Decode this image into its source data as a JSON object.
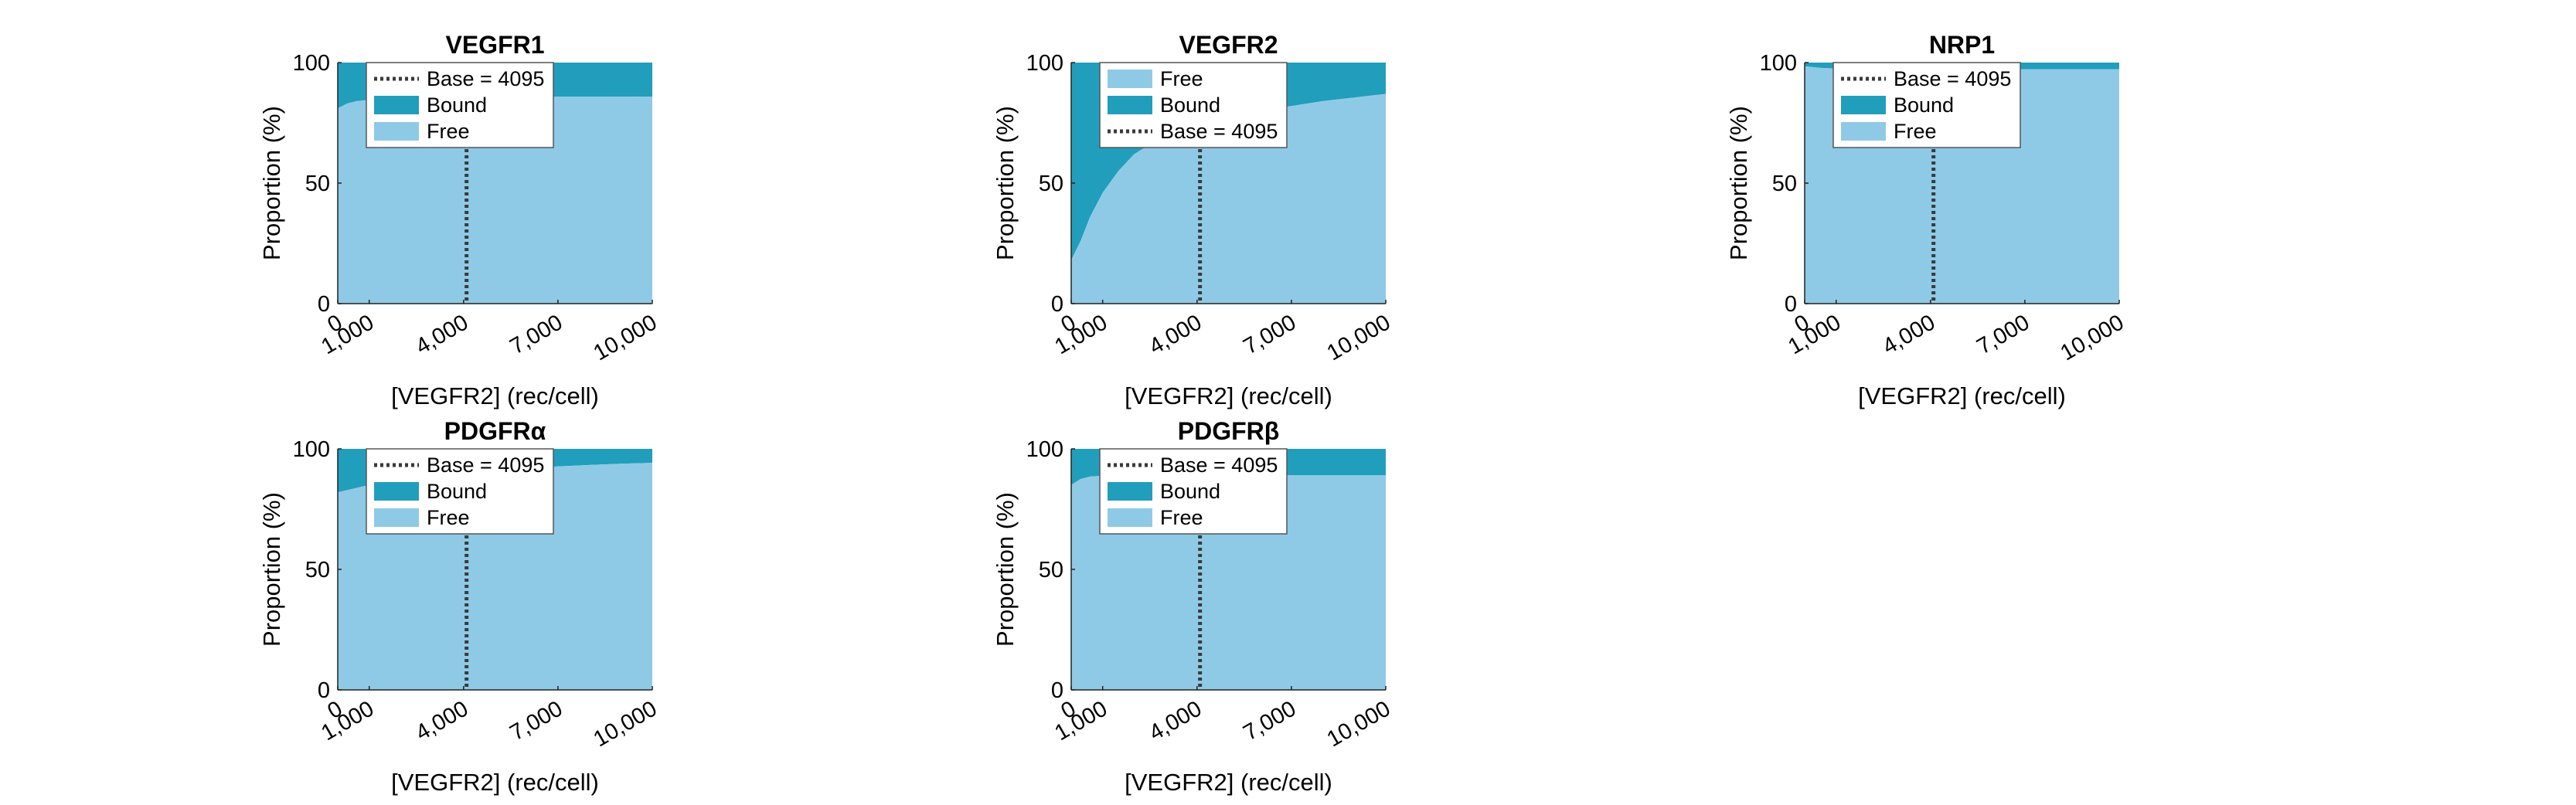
{
  "colors": {
    "free": "#8ecae6",
    "bound": "#219ebc",
    "base_line": "#3a3a3a",
    "axis": "#222222"
  },
  "chart_data": [
    {
      "type": "area",
      "title": "VEGFR1",
      "xlabel": "[VEGFR2] (rec/cell)",
      "ylabel": "Proportion (%)",
      "xlim": [
        0,
        10000
      ],
      "ylim": [
        0,
        100
      ],
      "x_ticks": [
        "0",
        "1,000",
        "4,000",
        "7,000",
        "10,000"
      ],
      "y_ticks": [
        "0",
        "50",
        "100"
      ],
      "base_value": 4095,
      "legend_order": [
        "Base = 4095",
        "Bound",
        "Free"
      ],
      "x": [
        0,
        300,
        600,
        1000,
        1500,
        2000,
        3000,
        4000,
        5000,
        6000,
        7000,
        8000,
        9000,
        10000
      ],
      "series": [
        {
          "name": "Free",
          "values": [
            81,
            83,
            84,
            84.5,
            85,
            85,
            85.3,
            85.5,
            85.6,
            85.7,
            85.8,
            85.8,
            85.8,
            85.9
          ]
        },
        {
          "name": "Bound",
          "values": [
            19,
            17,
            16,
            15.5,
            15,
            15,
            14.7,
            14.5,
            14.4,
            14.3,
            14.2,
            14.2,
            14.2,
            14.1
          ]
        }
      ]
    },
    {
      "type": "area",
      "title": "VEGFR2",
      "xlabel": "[VEGFR2] (rec/cell)",
      "ylabel": "Proportion (%)",
      "xlim": [
        0,
        10000
      ],
      "ylim": [
        0,
        100
      ],
      "x_ticks": [
        "0",
        "1,000",
        "4,000",
        "7,000",
        "10,000"
      ],
      "y_ticks": [
        "0",
        "50",
        "100"
      ],
      "base_value": 4095,
      "legend_order": [
        "Free",
        "Bound",
        "Base = 4095"
      ],
      "x": [
        0,
        300,
        600,
        1000,
        1500,
        2000,
        3000,
        4000,
        5000,
        6000,
        7000,
        8000,
        9000,
        10000
      ],
      "series": [
        {
          "name": "Free",
          "values": [
            18,
            26,
            36,
            46,
            55,
            62,
            70,
            74.5,
            77.5,
            80,
            82,
            84,
            85.5,
            87
          ]
        },
        {
          "name": "Bound",
          "values": [
            82,
            74,
            64,
            54,
            45,
            38,
            30,
            25.5,
            22.5,
            20,
            18,
            16,
            14.5,
            13
          ]
        }
      ]
    },
    {
      "type": "area",
      "title": "NRP1",
      "xlabel": "[VEGFR2] (rec/cell)",
      "ylabel": "Proportion (%)",
      "xlim": [
        0,
        10000
      ],
      "ylim": [
        0,
        100
      ],
      "x_ticks": [
        "0",
        "1,000",
        "4,000",
        "7,000",
        "10,000"
      ],
      "y_ticks": [
        "0",
        "50",
        "100"
      ],
      "base_value": 4095,
      "legend_order": [
        "Base = 4095",
        "Bound",
        "Free"
      ],
      "x": [
        0,
        500,
        1000,
        2000,
        4000,
        6000,
        8000,
        10000
      ],
      "series": [
        {
          "name": "Free",
          "values": [
            98.5,
            97.8,
            97.5,
            97.3,
            97.2,
            97.2,
            97.2,
            97.2
          ]
        },
        {
          "name": "Bound",
          "values": [
            1.5,
            2.2,
            2.5,
            2.7,
            2.8,
            2.8,
            2.8,
            2.8
          ]
        }
      ]
    },
    {
      "type": "area",
      "title": "PDGFRα",
      "xlabel": "[VEGFR2] (rec/cell)",
      "ylabel": "Proportion (%)",
      "xlim": [
        0,
        10000
      ],
      "ylim": [
        0,
        100
      ],
      "x_ticks": [
        "0",
        "1,000",
        "4,000",
        "7,000",
        "10,000"
      ],
      "y_ticks": [
        "0",
        "50",
        "100"
      ],
      "base_value": 4095,
      "legend_order": [
        "Base = 4095",
        "Bound",
        "Free"
      ],
      "x": [
        0,
        500,
        1000,
        2000,
        3000,
        4000,
        5000,
        6000,
        7000,
        8000,
        9000,
        10000
      ],
      "series": [
        {
          "name": "Free",
          "values": [
            82,
            83.5,
            85,
            87,
            88.5,
            90,
            91,
            92,
            92.7,
            93.3,
            93.8,
            94.2
          ]
        },
        {
          "name": "Bound",
          "values": [
            18,
            16.5,
            15,
            13,
            11.5,
            10,
            9,
            8,
            7.3,
            6.7,
            6.2,
            5.8
          ]
        }
      ]
    },
    {
      "type": "area",
      "title": "PDGFRβ",
      "xlabel": "[VEGFR2] (rec/cell)",
      "ylabel": "Proportion (%)",
      "xlim": [
        0,
        10000
      ],
      "ylim": [
        0,
        100
      ],
      "x_ticks": [
        "0",
        "1,000",
        "4,000",
        "7,000",
        "10,000"
      ],
      "y_ticks": [
        "0",
        "50",
        "100"
      ],
      "base_value": 4095,
      "legend_order": [
        "Base = 4095",
        "Bound",
        "Free"
      ],
      "x": [
        0,
        300,
        600,
        1000,
        2000,
        4000,
        6000,
        8000,
        10000
      ],
      "series": [
        {
          "name": "Free",
          "values": [
            85,
            87.5,
            88.5,
            88.8,
            89,
            89,
            89,
            89,
            89
          ]
        },
        {
          "name": "Bound",
          "values": [
            15,
            12.5,
            11.5,
            11.2,
            11,
            11,
            11,
            11,
            11
          ]
        }
      ]
    }
  ]
}
